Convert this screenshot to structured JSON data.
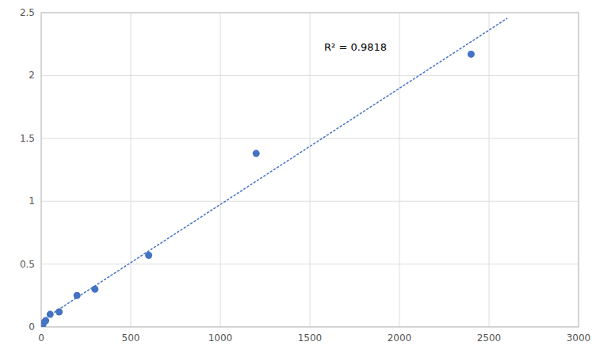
{
  "chart_data": {
    "type": "scatter",
    "x": [
      10,
      25,
      50,
      100,
      200,
      300,
      600,
      1200,
      2400
    ],
    "values": [
      0.02,
      0.05,
      0.1,
      0.12,
      0.25,
      0.3,
      0.57,
      1.38,
      2.17
    ],
    "color": "#4472c4",
    "trendline": {
      "x": [
        0,
        2600
      ],
      "values": [
        0.049106,
        2.453797
      ],
      "color": "#4472c4",
      "line_style": "dotted"
    },
    "annotations": [
      {
        "text": "R² = 0.9818",
        "x": 1580,
        "y": 2.28
      }
    ],
    "xlim": [
      0,
      3000
    ],
    "ylim": [
      0,
      2.5
    ],
    "xticks": [
      0,
      500,
      1000,
      1500,
      2000,
      2500,
      3000
    ],
    "yticks": [
      0,
      0.5,
      1,
      1.5,
      2,
      2.5
    ],
    "grid": true
  }
}
